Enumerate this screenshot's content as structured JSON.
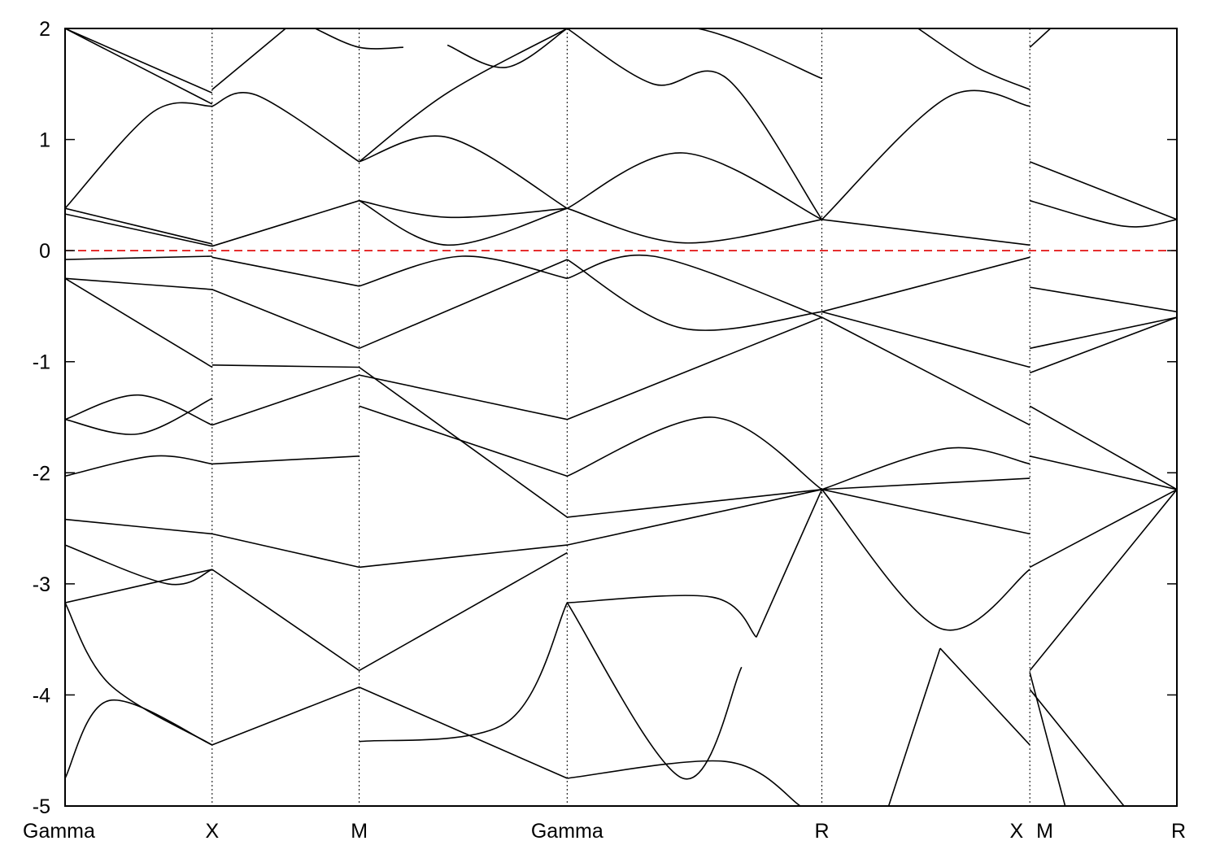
{
  "chart_data": {
    "type": "line",
    "title": "",
    "xlabel": "",
    "ylabel": "",
    "ylim": [
      -5,
      2
    ],
    "y_ticks": [
      "2",
      "1",
      "0",
      "-1",
      "-2",
      "-3",
      "-4",
      "-5"
    ],
    "y_tick_values": [
      2,
      1,
      0,
      -1,
      -2,
      -3,
      -4,
      -5
    ],
    "k_points": [
      "Gamma",
      "X",
      "M",
      "Gamma",
      "R",
      "X",
      "M",
      "R"
    ],
    "k_point_positions": [
      0,
      1,
      2,
      3.414,
      5.146,
      6.56,
      6.56,
      7.56
    ],
    "fermi_level": 0,
    "fermi_color": "#e00000",
    "line_color": "#000000",
    "series": [
      {
        "x": [
          0,
          1
        ],
        "y": [
          2.0,
          1.42
        ]
      },
      {
        "x": [
          0,
          1
        ],
        "y": [
          2.0,
          1.32
        ]
      },
      {
        "x": [
          0,
          0.6,
          1
        ],
        "y": [
          0.38,
          1.25,
          1.3
        ]
      },
      {
        "x": [
          1,
          1.3,
          2
        ],
        "y": [
          1.3,
          1.4,
          0.8
        ]
      },
      {
        "x": [
          1,
          1.5
        ],
        "y": [
          1.45,
          2.0
        ]
      },
      {
        "x": [
          1.7,
          2,
          2.3
        ],
        "y": [
          2.0,
          1.83,
          1.83
        ]
      },
      {
        "x": [
          2,
          2.6,
          3.414
        ],
        "y": [
          0.8,
          1.42,
          2.0
        ]
      },
      {
        "x": [
          2,
          2.6,
          3.414
        ],
        "y": [
          0.8,
          1.02,
          0.38
        ]
      },
      {
        "x": [
          2.6,
          3,
          3.414
        ],
        "y": [
          1.85,
          1.65,
          2.0
        ]
      },
      {
        "x": [
          3.414,
          4,
          4.5,
          5.146
        ],
        "y": [
          2.0,
          1.5,
          1.55,
          0.28
        ]
      },
      {
        "x": [
          3.414,
          4.2,
          5.146
        ],
        "y": [
          0.38,
          0.88,
          0.28
        ]
      },
      {
        "x": [
          3.414,
          4.3,
          5.146
        ],
        "y": [
          2.0,
          2.0,
          1.55
        ]
      },
      {
        "x": [
          5.146,
          6.0,
          6.56
        ],
        "y": [
          0.28,
          1.38,
          1.3
        ]
      },
      {
        "x": [
          5.8,
          6.2,
          6.56
        ],
        "y": [
          2.0,
          1.65,
          1.45
        ]
      },
      {
        "x": [
          0,
          1
        ],
        "y": [
          0.38,
          0.06
        ]
      },
      {
        "x": [
          0,
          1
        ],
        "y": [
          0.33,
          0.04
        ]
      },
      {
        "x": [
          1,
          2
        ],
        "y": [
          0.04,
          0.45
        ]
      },
      {
        "x": [
          2,
          2.6,
          3.414
        ],
        "y": [
          0.45,
          0.05,
          0.38
        ]
      },
      {
        "x": [
          2,
          2.6,
          3.414
        ],
        "y": [
          0.45,
          0.3,
          0.38
        ]
      },
      {
        "x": [
          3.414,
          4.2,
          5.146
        ],
        "y": [
          0.38,
          0.07,
          0.28
        ]
      },
      {
        "x": [
          5.146,
          6.56
        ],
        "y": [
          0.28,
          0.05
        ]
      },
      {
        "x": [
          6.56,
          7.56
        ],
        "y": [
          0.8,
          0.28
        ]
      },
      {
        "x": [
          6.56,
          7.2,
          7.56
        ],
        "y": [
          0.45,
          0.22,
          0.28
        ]
      },
      {
        "x": [
          6.56,
          6.7
        ],
        "y": [
          1.83,
          2.0
        ]
      },
      {
        "x": [
          0,
          1
        ],
        "y": [
          -0.08,
          -0.05
        ]
      },
      {
        "x": [
          0,
          1
        ],
        "y": [
          -0.25,
          -0.35
        ]
      },
      {
        "x": [
          0,
          1
        ],
        "y": [
          -0.25,
          -1.05
        ]
      },
      {
        "x": [
          1,
          2
        ],
        "y": [
          -0.06,
          -0.32
        ]
      },
      {
        "x": [
          1,
          2
        ],
        "y": [
          -0.35,
          -0.88
        ]
      },
      {
        "x": [
          2,
          2.7,
          3.414
        ],
        "y": [
          -0.32,
          -0.05,
          -0.25
        ]
      },
      {
        "x": [
          2,
          3.414
        ],
        "y": [
          -0.88,
          -0.08
        ]
      },
      {
        "x": [
          3.414,
          4.2,
          5.146
        ],
        "y": [
          -0.08,
          -0.7,
          -0.55
        ]
      },
      {
        "x": [
          3.414,
          4.0,
          5.146
        ],
        "y": [
          -0.25,
          -0.05,
          -0.6
        ]
      },
      {
        "x": [
          5.146,
          6.56
        ],
        "y": [
          -0.55,
          -0.06
        ]
      },
      {
        "x": [
          5.146,
          6.56
        ],
        "y": [
          -0.55,
          -1.05
        ]
      },
      {
        "x": [
          5.146,
          6.56
        ],
        "y": [
          -0.6,
          -1.57
        ]
      },
      {
        "x": [
          6.56,
          7.56
        ],
        "y": [
          -0.33,
          -0.55
        ]
      },
      {
        "x": [
          6.56,
          7.56
        ],
        "y": [
          -0.88,
          -0.6
        ]
      },
      {
        "x": [
          6.56,
          7.56
        ],
        "y": [
          -1.1,
          -0.6
        ]
      },
      {
        "x": [
          0,
          0.5,
          1
        ],
        "y": [
          -1.52,
          -1.3,
          -1.57
        ]
      },
      {
        "x": [
          0,
          0.5,
          1
        ],
        "y": [
          -1.52,
          -1.65,
          -1.33
        ]
      },
      {
        "x": [
          0,
          0.6,
          1
        ],
        "y": [
          -2.03,
          -1.85,
          -1.92
        ]
      },
      {
        "x": [
          1,
          2
        ],
        "y": [
          -1.03,
          -1.05
        ]
      },
      {
        "x": [
          1,
          2
        ],
        "y": [
          -1.57,
          -1.12
        ]
      },
      {
        "x": [
          1,
          2
        ],
        "y": [
          -1.92,
          -1.85
        ]
      },
      {
        "x": [
          2,
          3.414
        ],
        "y": [
          -1.12,
          -1.52
        ]
      },
      {
        "x": [
          2,
          3.414
        ],
        "y": [
          -1.4,
          -2.03
        ]
      },
      {
        "x": [
          2,
          3.414
        ],
        "y": [
          -1.05,
          -2.4
        ]
      },
      {
        "x": [
          3.414,
          5.146
        ],
        "y": [
          -1.52,
          -0.6
        ]
      },
      {
        "x": [
          3.414,
          4.4,
          5.146
        ],
        "y": [
          -2.03,
          -1.5,
          -2.15
        ]
      },
      {
        "x": [
          3.414,
          5.146
        ],
        "y": [
          -2.4,
          -2.15
        ]
      },
      {
        "x": [
          5.146,
          6.0,
          6.56
        ],
        "y": [
          -2.15,
          -1.78,
          -1.92
        ]
      },
      {
        "x": [
          5.146,
          6.56
        ],
        "y": [
          -2.15,
          -2.05
        ]
      },
      {
        "x": [
          5.146,
          6.56
        ],
        "y": [
          -2.15,
          -2.55
        ]
      },
      {
        "x": [
          6.56,
          7.56
        ],
        "y": [
          -1.4,
          -2.15
        ]
      },
      {
        "x": [
          6.56,
          7.56
        ],
        "y": [
          -1.85,
          -2.15
        ]
      },
      {
        "x": [
          6.56,
          7.56
        ],
        "y": [
          -2.85,
          -2.15
        ]
      },
      {
        "x": [
          0,
          1
        ],
        "y": [
          -2.42,
          -2.55
        ]
      },
      {
        "x": [
          0,
          0.7,
          1
        ],
        "y": [
          -2.65,
          -3.0,
          -2.87
        ]
      },
      {
        "x": [
          0,
          1
        ],
        "y": [
          -3.17,
          -2.87
        ]
      },
      {
        "x": [
          1,
          2
        ],
        "y": [
          -2.55,
          -2.85
        ]
      },
      {
        "x": [
          1,
          2
        ],
        "y": [
          -2.87,
          -3.78
        ]
      },
      {
        "x": [
          2,
          3.414
        ],
        "y": [
          -2.85,
          -2.65
        ]
      },
      {
        "x": [
          2,
          3.414
        ],
        "y": [
          -3.78,
          -2.72
        ]
      },
      {
        "x": [
          3.414,
          5.146
        ],
        "y": [
          -2.65,
          -2.15
        ]
      },
      {
        "x": [
          3.414,
          4.4,
          4.7
        ],
        "y": [
          -3.17,
          -3.12,
          -3.48
        ]
      },
      {
        "x": [
          4.7,
          5.146
        ],
        "y": [
          -3.48,
          -2.15
        ]
      },
      {
        "x": [
          5.146,
          5.95,
          6.56
        ],
        "y": [
          -2.15,
          -3.4,
          -2.87
        ]
      },
      {
        "x": [
          5.95,
          6.56
        ],
        "y": [
          -3.58,
          -4.45
        ]
      },
      {
        "x": [
          6.56,
          7.56
        ],
        "y": [
          -3.78,
          -2.15
        ]
      },
      {
        "x": [
          0,
          0.3,
          1
        ],
        "y": [
          -3.17,
          -3.9,
          -4.45
        ]
      },
      {
        "x": [
          0,
          0.3,
          1
        ],
        "y": [
          -4.75,
          -4.05,
          -4.45
        ]
      },
      {
        "x": [
          1,
          2
        ],
        "y": [
          -4.45,
          -3.93
        ]
      },
      {
        "x": [
          2,
          3.414
        ],
        "y": [
          -3.93,
          -4.75
        ]
      },
      {
        "x": [
          2,
          3.0,
          3.414
        ],
        "y": [
          -4.42,
          -4.25,
          -3.17
        ]
      },
      {
        "x": [
          3.414,
          4.5,
          5.0
        ],
        "y": [
          -4.75,
          -4.6,
          -5.0
        ]
      },
      {
        "x": [
          3.414,
          4.2,
          4.6
        ],
        "y": [
          -3.17,
          -4.75,
          -3.75
        ]
      },
      {
        "x": [
          5.6,
          5.95
        ],
        "y": [
          -5.0,
          -3.58
        ]
      },
      {
        "x": [
          6.56,
          6.8
        ],
        "y": [
          -3.8,
          -5.0
        ]
      },
      {
        "x": [
          6.56,
          7.2
        ],
        "y": [
          -3.95,
          -5.0
        ]
      }
    ]
  }
}
